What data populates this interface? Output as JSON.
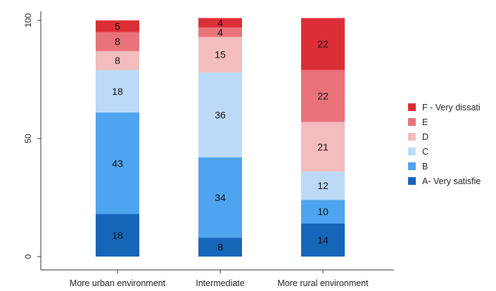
{
  "chart_data": {
    "type": "bar",
    "stacked": true,
    "title": "",
    "xlabel": "",
    "ylabel": "",
    "ylim": [
      0,
      100
    ],
    "yticks": [
      0,
      50,
      100
    ],
    "grid": false,
    "legend_position": "right",
    "categories": [
      "More urban environment",
      "Intermediate",
      "More rural environment"
    ],
    "series": [
      {
        "name": "A- Very satisfie",
        "color": "#1565b8",
        "values": [
          18,
          8,
          14
        ]
      },
      {
        "name": "B",
        "color": "#4ea4ef",
        "values": [
          43,
          34,
          10
        ]
      },
      {
        "name": "C",
        "color": "#bcdaf7",
        "values": [
          18,
          36,
          12
        ]
      },
      {
        "name": "D",
        "color": "#f3bcbd",
        "values": [
          8,
          15,
          21
        ]
      },
      {
        "name": "E",
        "color": "#e8727a",
        "values": [
          8,
          4,
          22
        ]
      },
      {
        "name": "F - Very dissati",
        "color": "#dc2e37",
        "values": [
          5,
          4,
          22
        ]
      }
    ]
  }
}
